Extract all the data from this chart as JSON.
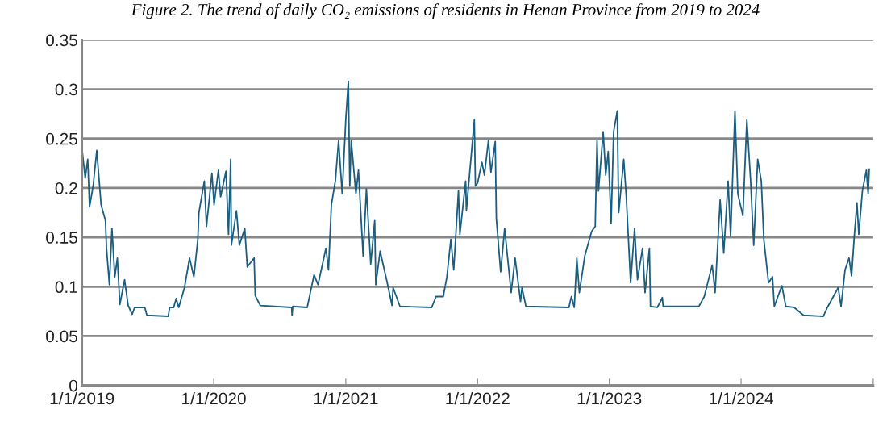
{
  "chart_data": {
    "type": "line",
    "title": "Figure 2. The trend of daily CO₂ emissions of residents in Henan Province from 2019 to 2024",
    "xlim": [
      "2019-01-01",
      "2025-01-01"
    ],
    "xticks": [
      {
        "value": "2019-01-01",
        "label": "1/1/2019"
      },
      {
        "value": "2020-01-01",
        "label": "1/1/2020"
      },
      {
        "value": "2021-01-01",
        "label": "1/1/2021"
      },
      {
        "value": "2022-01-01",
        "label": "1/1/2022"
      },
      {
        "value": "2023-01-01",
        "label": "1/1/2023"
      },
      {
        "value": "2024-01-01",
        "label": "1/1/2024"
      },
      {
        "value": "2025-01-01",
        "label": null
      }
    ],
    "ylim": [
      0,
      0.35
    ],
    "yticks": [
      {
        "value": 0,
        "label": "0"
      },
      {
        "value": 0.05,
        "label": "0.05"
      },
      {
        "value": 0.1,
        "label": "0.1"
      },
      {
        "value": 0.15,
        "label": "0.15"
      },
      {
        "value": 0.2,
        "label": "0.2"
      },
      {
        "value": 0.25,
        "label": "0.25"
      },
      {
        "value": 0.3,
        "label": "0.3"
      },
      {
        "value": 0.35,
        "label": "0.35"
      }
    ],
    "grid": "y",
    "legend": false,
    "marker": "none",
    "line_style": "solid",
    "series": [
      {
        "color": "#1a5f80",
        "x": [
          "2019-01-01",
          "2019-01-10",
          "2019-01-17",
          "2019-01-22",
          "2019-02-01",
          "2019-02-11",
          "2019-02-23",
          "2019-03-07",
          "2019-03-10",
          "2019-03-18",
          "2019-03-25",
          "2019-04-02",
          "2019-04-09",
          "2019-04-16",
          "2019-04-29",
          "2019-05-09",
          "2019-05-20",
          "2019-05-27",
          "2019-06-24",
          "2019-06-30",
          "2019-08-28",
          "2019-09-01",
          "2019-09-12",
          "2019-09-19",
          "2019-09-26",
          "2019-10-12",
          "2019-10-26",
          "2019-11-07",
          "2019-11-18",
          "2019-11-21",
          "2019-12-06",
          "2019-12-12",
          "2019-12-27",
          "2020-01-02",
          "2020-01-14",
          "2020-01-20",
          "2020-02-04",
          "2020-02-11",
          "2020-02-17",
          "2020-02-19",
          "2020-03-04",
          "2020-03-12",
          "2020-03-27",
          "2020-04-03",
          "2020-04-22",
          "2020-04-25",
          "2020-05-09",
          "2020-08-04",
          "2020-08-05",
          "2020-08-07",
          "2020-09-16",
          "2020-10-05",
          "2020-10-16",
          "2020-11-07",
          "2020-11-14",
          "2020-11-22",
          "2020-12-03",
          "2020-12-12",
          "2020-12-22",
          "2021-01-01",
          "2021-01-08",
          "2021-01-12",
          "2021-01-16",
          "2021-01-29",
          "2021-02-05",
          "2021-02-18",
          "2021-02-27",
          "2021-03-11",
          "2021-03-22",
          "2021-03-25",
          "2021-04-06",
          "2021-04-24",
          "2021-05-09",
          "2021-05-12",
          "2021-05-31",
          "2021-08-27",
          "2021-09-08",
          "2021-09-28",
          "2021-10-08",
          "2021-10-19",
          "2021-10-27",
          "2021-11-09",
          "2021-11-13",
          "2021-11-29",
          "2021-12-01",
          "2021-12-23",
          "2021-12-26",
          "2022-01-01",
          "2022-01-13",
          "2022-01-20",
          "2022-01-31",
          "2022-02-07",
          "2022-02-19",
          "2022-02-22",
          "2022-03-06",
          "2022-03-17",
          "2022-04-04",
          "2022-04-15",
          "2022-04-30",
          "2022-05-04",
          "2022-05-15",
          "2022-09-11",
          "2022-09-18",
          "2022-09-26",
          "2022-10-03",
          "2022-10-10",
          "2022-10-25",
          "2022-11-13",
          "2022-11-23",
          "2022-11-28",
          "2022-12-02",
          "2022-12-15",
          "2022-12-22",
          "2022-12-29",
          "2023-01-06",
          "2023-01-13",
          "2023-01-23",
          "2023-01-27",
          "2023-02-10",
          "2023-02-17",
          "2023-03-01",
          "2023-03-12",
          "2023-03-20",
          "2023-04-03",
          "2023-04-10",
          "2023-04-22",
          "2023-04-25",
          "2023-05-14",
          "2023-05-28",
          "2023-05-30",
          "2023-09-06",
          "2023-09-21",
          "2023-10-13",
          "2023-10-21",
          "2023-11-04",
          "2023-11-14",
          "2023-11-26",
          "2023-12-03",
          "2023-12-15",
          "2023-12-23",
          "2024-01-06",
          "2024-01-17",
          "2024-01-27",
          "2024-02-05",
          "2024-02-16",
          "2024-02-26",
          "2024-03-04",
          "2024-03-17",
          "2024-03-28",
          "2024-04-02",
          "2024-04-23",
          "2024-05-04",
          "2024-05-27",
          "2024-06-22",
          "2024-08-16",
          "2024-08-27",
          "2024-09-26",
          "2024-10-04",
          "2024-10-15",
          "2024-10-26",
          "2024-11-02",
          "2024-11-10",
          "2024-11-17",
          "2024-11-22",
          "2024-12-02",
          "2024-12-13",
          "2024-12-18",
          "2024-12-21"
        ],
        "values": [
          0.24,
          0.21,
          0.229,
          0.181,
          0.202,
          0.238,
          0.183,
          0.167,
          0.139,
          0.102,
          0.159,
          0.11,
          0.129,
          0.082,
          0.107,
          0.081,
          0.072,
          0.079,
          0.079,
          0.071,
          0.07,
          0.079,
          0.079,
          0.088,
          0.079,
          0.099,
          0.129,
          0.11,
          0.148,
          0.175,
          0.207,
          0.161,
          0.215,
          0.183,
          0.218,
          0.191,
          0.217,
          0.153,
          0.229,
          0.142,
          0.177,
          0.142,
          0.159,
          0.12,
          0.129,
          0.091,
          0.081,
          0.079,
          0.071,
          0.08,
          0.079,
          0.112,
          0.102,
          0.139,
          0.117,
          0.183,
          0.207,
          0.248,
          0.194,
          0.27,
          0.308,
          0.202,
          0.248,
          0.194,
          0.218,
          0.131,
          0.199,
          0.123,
          0.167,
          0.102,
          0.136,
          0.107,
          0.081,
          0.099,
          0.08,
          0.079,
          0.09,
          0.09,
          0.11,
          0.148,
          0.117,
          0.197,
          0.153,
          0.207,
          0.177,
          0.269,
          0.202,
          0.205,
          0.226,
          0.213,
          0.248,
          0.216,
          0.247,
          0.169,
          0.115,
          0.159,
          0.094,
          0.129,
          0.085,
          0.099,
          0.08,
          0.079,
          0.09,
          0.079,
          0.129,
          0.094,
          0.131,
          0.156,
          0.161,
          0.248,
          0.197,
          0.257,
          0.213,
          0.237,
          0.164,
          0.257,
          0.278,
          0.175,
          0.229,
          0.191,
          0.104,
          0.159,
          0.107,
          0.139,
          0.094,
          0.139,
          0.08,
          0.079,
          0.089,
          0.08,
          0.08,
          0.09,
          0.122,
          0.094,
          0.188,
          0.134,
          0.207,
          0.151,
          0.278,
          0.194,
          0.172,
          0.269,
          0.21,
          0.142,
          0.229,
          0.207,
          0.148,
          0.104,
          0.11,
          0.08,
          0.101,
          0.08,
          0.079,
          0.071,
          0.07,
          0.079,
          0.099,
          0.08,
          0.117,
          0.129,
          0.111,
          0.153,
          0.185,
          0.153,
          0.197,
          0.218,
          0.194,
          0.219
        ]
      }
    ]
  }
}
